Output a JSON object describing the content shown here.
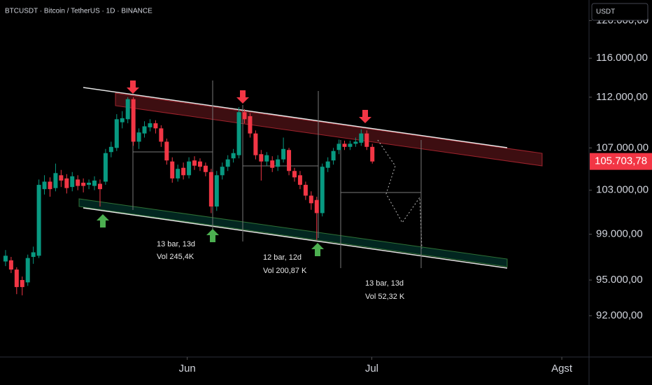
{
  "chart_data": {
    "type": "candlestick",
    "title": "BTCUSDT · Bitcoin / TetherUS · 1D · BINANCE",
    "currency_button": "USDT",
    "up_color": "#089981",
    "down_color": "#f23645",
    "log_scale": true,
    "ylim": [
      88640,
      122240
    ],
    "yticks": [
      {
        "value": 92000,
        "label": "92.000,00"
      },
      {
        "value": 95000,
        "label": "95.000,00"
      },
      {
        "value": 99000,
        "label": "99.000,00"
      },
      {
        "value": 103000,
        "label": "103.000,00"
      },
      {
        "value": 107000,
        "label": "107.000,00"
      },
      {
        "value": 112000,
        "label": "112.000,00"
      },
      {
        "value": 116000,
        "label": "116.000,00"
      },
      {
        "value": 120000,
        "label": "120.000,00"
      }
    ],
    "xlim": [
      -1,
      105
    ],
    "xticks": [
      {
        "value": 32.7,
        "label": "Jun"
      },
      {
        "value": 65.9,
        "label": "Jul"
      },
      {
        "value": 100.1,
        "label": "Agst"
      }
    ],
    "last_price": {
      "value": 105703.78,
      "label": "105.703,78"
    },
    "open": [
      96600,
      96700,
      95900,
      95000,
      94800,
      97000,
      97100,
      103100,
      103800,
      103200,
      104400,
      104100,
      103300,
      104000,
      103700,
      103500,
      103400,
      103600,
      103800,
      106600,
      107000,
      109500,
      109800,
      111800,
      107600,
      108400,
      109000,
      109400,
      108900,
      107600,
      105700,
      104100,
      105100,
      104400,
      105800,
      105700,
      105300,
      104700,
      101500,
      104400,
      105200,
      106000,
      106300,
      110500,
      110100,
      108400,
      106400,
      105700,
      105800,
      105200,
      105900,
      106800,
      104800,
      104400,
      103500,
      102500,
      102100,
      100900,
      105100,
      105800,
      106800,
      107400,
      107100,
      107400,
      107500,
      108400,
      107100
    ],
    "high": [
      97600,
      97000,
      96100,
      95300,
      97200,
      97900,
      104000,
      104400,
      104200,
      105500,
      104900,
      104500,
      104700,
      104400,
      104100,
      104000,
      104300,
      104000,
      106900,
      107600,
      110300,
      110600,
      112000,
      112000,
      108900,
      109600,
      109800,
      109700,
      109200,
      107900,
      106100,
      105400,
      105600,
      106100,
      106200,
      106000,
      105600,
      105000,
      104800,
      105600,
      106300,
      106900,
      111000,
      110800,
      110400,
      108700,
      106800,
      106600,
      106200,
      106300,
      108000,
      107000,
      105100,
      104800,
      103800,
      102900,
      102400,
      105500,
      106100,
      107000,
      107800,
      107700,
      107700,
      108000,
      108800,
      108700,
      107400
    ],
    "low": [
      96200,
      95600,
      93800,
      93700,
      94500,
      96400,
      96900,
      102600,
      102400,
      102900,
      103300,
      102700,
      102900,
      103000,
      102800,
      103100,
      103000,
      101500,
      103500,
      106100,
      106700,
      108900,
      109400,
      107200,
      106900,
      108000,
      108600,
      108400,
      107100,
      105400,
      103700,
      103800,
      104000,
      104100,
      104900,
      104800,
      104300,
      100900,
      101100,
      104000,
      104800,
      105600,
      106000,
      109400,
      108000,
      105900,
      103900,
      105300,
      104700,
      104800,
      105600,
      104400,
      103800,
      103100,
      102100,
      101200,
      98500,
      100600,
      104700,
      105400,
      106400,
      106800,
      106800,
      107100,
      107200,
      106800,
      105500
    ],
    "close": [
      97100,
      95900,
      94400,
      94400,
      96900,
      97400,
      103500,
      103800,
      103100,
      104600,
      103900,
      103200,
      104300,
      103400,
      103400,
      103700,
      103900,
      103100,
      106500,
      107100,
      109800,
      109900,
      111800,
      107600,
      108500,
      109100,
      109400,
      108900,
      107600,
      105800,
      104100,
      105000,
      104400,
      105700,
      105300,
      105200,
      104700,
      101500,
      104400,
      105200,
      105900,
      106500,
      110500,
      109800,
      108400,
      106300,
      105700,
      106300,
      105100,
      105900,
      106900,
      104800,
      104200,
      103500,
      102500,
      101800,
      100900,
      105200,
      105700,
      106700,
      107400,
      107100,
      107400,
      107600,
      108400,
      107100,
      105700
    ],
    "annotations": [
      "13 bar, 13d",
      "Vol 245,4K",
      "12 bar, 12d",
      "Vol 200,87 K",
      "13 bar, 13d",
      "Vol 52,32 K"
    ]
  }
}
